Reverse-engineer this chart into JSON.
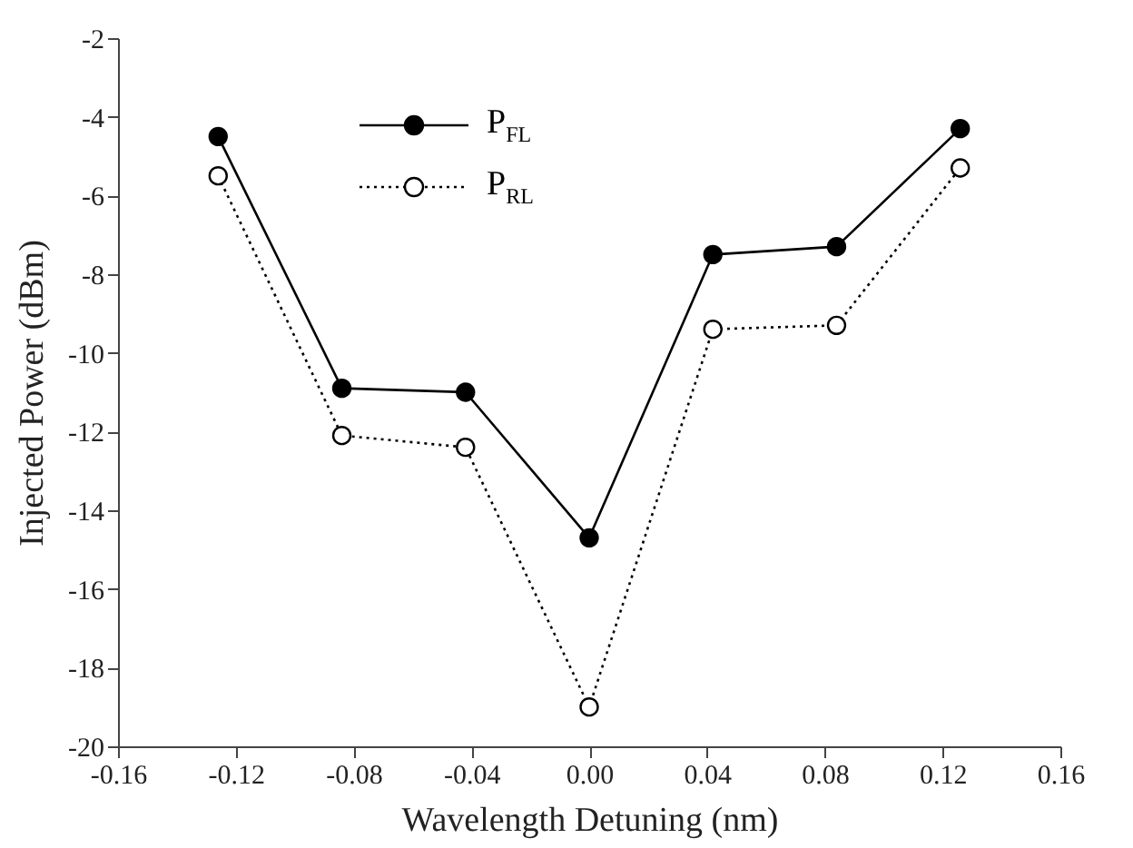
{
  "chart_data": {
    "type": "line",
    "xlabel": "Wavelength Detuning (nm)",
    "ylabel": "Injected Power (dBm)",
    "x": [
      -0.126,
      -0.084,
      -0.042,
      0,
      0.042,
      0.084,
      0.126
    ],
    "series": [
      {
        "name": "P$_{FL}$",
        "color": "#000000",
        "line_style": "solid",
        "values": [
          -4.5,
          -10.9,
          -11.0,
          -14.7,
          -7.5,
          -7.3,
          -4.3
        ]
      },
      {
        "name": "P$_{RL}$",
        "color": "#000000",
        "line_style": "dotted",
        "values": [
          -5.5,
          -12.1,
          -12.4,
          -19.0,
          -9.4,
          -9.3,
          -5.3
        ]
      }
    ],
    "xlim": [
      -0.16,
      0.16
    ],
    "xticks": [
      {
        "value": -0.16,
        "label": "-0.16"
      },
      {
        "value": -0.12,
        "label": "-0.12"
      },
      {
        "value": -0.08,
        "label": "-0.08"
      },
      {
        "value": -0.04,
        "label": "-0.04"
      },
      {
        "value": 0,
        "label": "0.00"
      },
      {
        "value": 0.04,
        "label": "0.04"
      },
      {
        "value": 0.08,
        "label": "0.08"
      },
      {
        "value": 0.12,
        "label": "0.12"
      },
      {
        "value": 0.16,
        "label": "0.16"
      }
    ],
    "ylim": [
      -20,
      -2
    ],
    "yticks": [
      -20,
      -18,
      -16,
      -14,
      -12,
      -10,
      -8,
      -6,
      -4,
      -2
    ],
    "marker": "circle",
    "legend": "top left",
    "grid": false
  }
}
